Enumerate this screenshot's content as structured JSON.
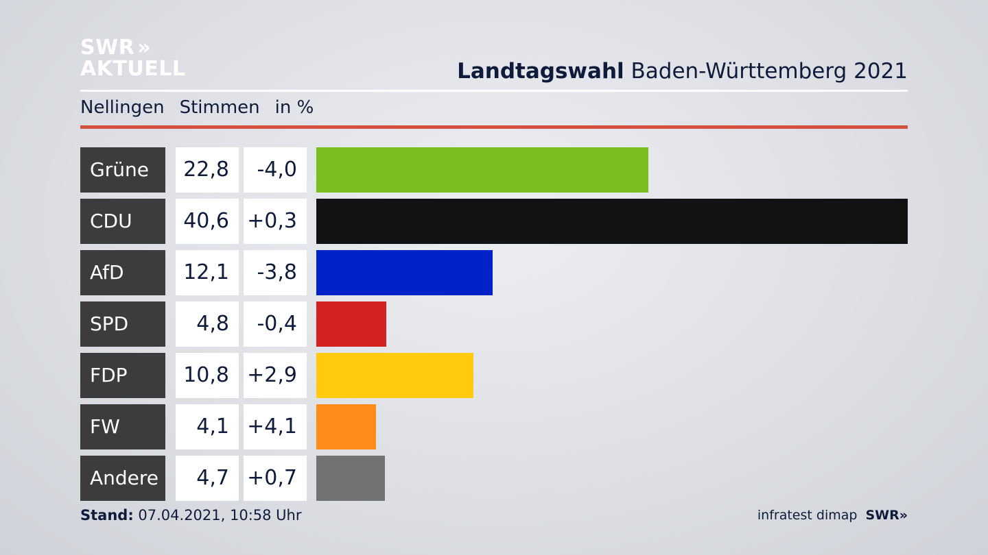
{
  "header": {
    "logo_line1": "SWR",
    "logo_arrows": "»",
    "logo_line2": "AKTUELL",
    "title_bold": "Landtagswahl",
    "title_rest": " Baden-Württemberg 2021",
    "subtitle_place": "Nellingen",
    "subtitle_metric": "Stimmen",
    "subtitle_unit": "in %"
  },
  "footer": {
    "stand_label": "Stand:",
    "stand_value": " 07.04.2021, 10:58 Uhr",
    "source": "infratest dimap",
    "source_logo": "SWR",
    "source_arrows": "»"
  },
  "chart_data": {
    "type": "bar",
    "categories": [
      "Grüne",
      "CDU",
      "AfD",
      "SPD",
      "FDP",
      "FW",
      "Andere"
    ],
    "values": [
      22.8,
      40.6,
      12.1,
      4.8,
      10.8,
      4.1,
      4.7
    ],
    "value_labels": [
      "22,8",
      "40,6",
      "12,1",
      "4,8",
      "10,8",
      "4,1",
      "4,7"
    ],
    "change_labels": [
      "-4,0",
      "+0,3",
      "-3,8",
      "-0,4",
      "+2,9",
      "+4,1",
      "+0,7"
    ],
    "changes": [
      -4.0,
      0.3,
      -3.8,
      -0.4,
      2.9,
      4.1,
      0.7
    ],
    "colors": [
      "#78be1e",
      "#121212",
      "#0022c8",
      "#d42020",
      "#ffcb0a",
      "#ff8c19",
      "#727274"
    ],
    "xlim": [
      0,
      40.6
    ]
  }
}
